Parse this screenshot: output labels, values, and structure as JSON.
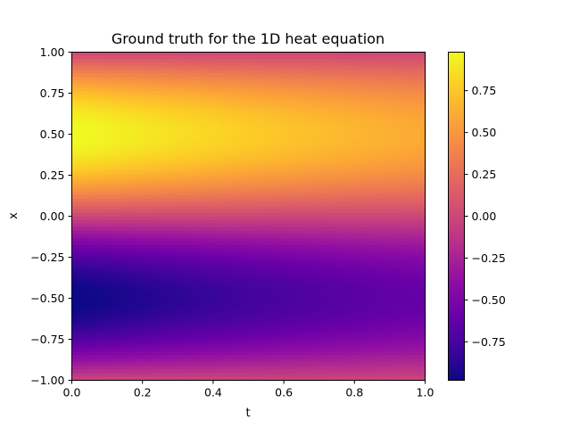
{
  "chart_data": {
    "type": "heatmap",
    "title": "Ground truth for the 1D heat equation",
    "xlabel": "t",
    "ylabel": "x",
    "xlim": [
      0,
      1
    ],
    "ylim": [
      -1,
      1
    ],
    "x_ticks": [
      "0.0",
      "0.2",
      "0.4",
      "0.6",
      "0.8",
      "1.0"
    ],
    "y_ticks": [
      "1.00",
      "0.75",
      "0.50",
      "0.25",
      "0.00",
      "−0.25",
      "−0.50",
      "−0.75",
      "−1.00"
    ],
    "colormap": "plasma",
    "colorbar": {
      "vmin": -0.98,
      "vmax": 0.98,
      "ticks": [
        "0.75",
        "0.50",
        "0.25",
        "0.00",
        "−0.25",
        "−0.50",
        "−0.75"
      ]
    },
    "field": "u(t,x) = sin(pi x) * exp(-0.5 t)",
    "grid": false
  }
}
